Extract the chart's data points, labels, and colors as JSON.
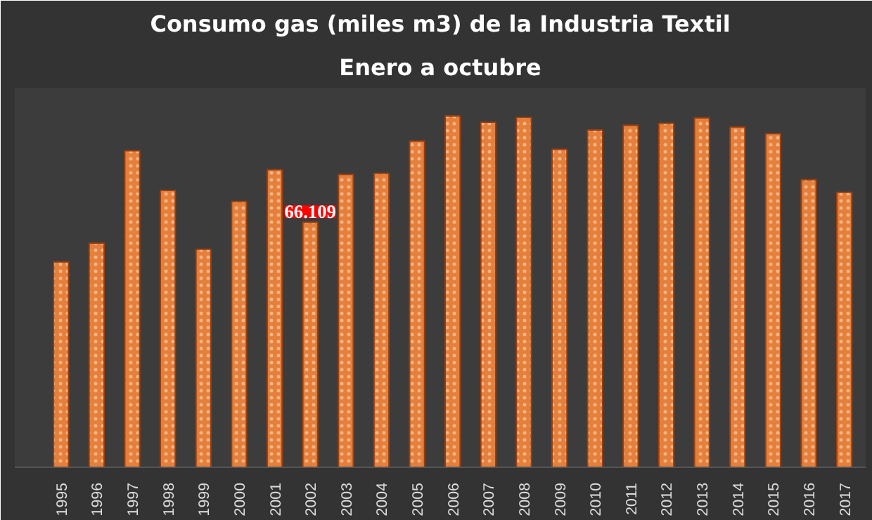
{
  "chart_data": {
    "type": "bar",
    "title": "Consumo gas (miles m3) de la Industria Textil",
    "subtitle": "Enero a octubre",
    "categories": [
      "1995",
      "1996",
      "1997",
      "1998",
      "1999",
      "2000",
      "2001",
      "2002",
      "2003",
      "2004",
      "2005",
      "2006",
      "2007",
      "2008",
      "2009",
      "2010",
      "2011",
      "2012",
      "2013",
      "2014",
      "2015",
      "2016",
      "2017"
    ],
    "values": [
      55.4,
      60.5,
      85.4,
      74.7,
      58.8,
      71.7,
      80.3,
      66.109,
      79.0,
      79.3,
      88.0,
      94.8,
      93.1,
      94.4,
      85.8,
      91.0,
      92.3,
      92.8,
      94.3,
      91.8,
      90.0,
      77.6,
      74.2
    ],
    "value_labels": [
      null,
      null,
      null,
      null,
      null,
      null,
      null,
      "66.109",
      null,
      null,
      null,
      null,
      null,
      null,
      null,
      null,
      null,
      null,
      null,
      null,
      null,
      null,
      null
    ],
    "color": "#e57f3c",
    "tick_labels": "x"
  }
}
